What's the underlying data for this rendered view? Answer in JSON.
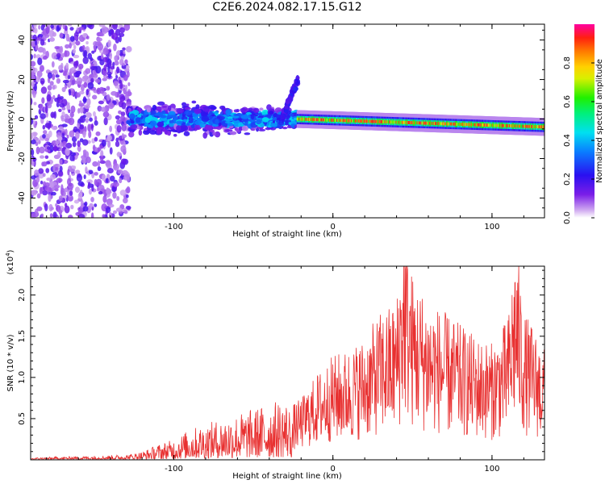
{
  "title": "C2E6.2024.082.17.15.G12",
  "colors": {
    "snr_line": "#e83030",
    "background": "#ffffff"
  },
  "chart_data": [
    {
      "type": "heatmap",
      "name": "spectrogram",
      "xlabel": "Height of straight line (km)",
      "ylabel": "Frequency (Hz)",
      "xlim": [
        -190,
        133
      ],
      "ylim": [
        -50,
        48
      ],
      "xticks": [
        -100,
        0,
        100
      ],
      "xtick_labels": [
        "-100",
        "0",
        "100"
      ],
      "yticks": [
        -40,
        -20,
        0,
        20,
        40
      ],
      "ytick_labels": [
        "-40",
        "-20",
        "0",
        "20",
        "40"
      ],
      "colorbar": {
        "label": "Normalized spectral amplitude",
        "range": [
          0,
          1
        ],
        "ticks": [
          0.0,
          0.2,
          0.4,
          0.6,
          0.8
        ],
        "tick_labels": [
          "0.0",
          "0.2",
          "0.4",
          "0.6",
          "0.8"
        ],
        "colormap": "rainbow (violet-blue-cyan-green-yellow-red-magenta)"
      },
      "regions": [
        {
          "x_range": [
            -190,
            -128
          ],
          "freq_range": [
            -50,
            48
          ],
          "amplitude": 0.1,
          "pattern": "scattered noise"
        },
        {
          "x_range": [
            -128,
            -22
          ],
          "freq_center": 0,
          "freq_halfwidth": 7,
          "amplitude": 0.3,
          "pattern": "broad signal band"
        },
        {
          "x_range": [
            -32,
            -22
          ],
          "freq_range": [
            0,
            20
          ],
          "amplitude": 0.15,
          "pattern": "upward branch"
        },
        {
          "x_range": [
            -22,
            133
          ],
          "freq_center_start": 0,
          "freq_center_end": -4,
          "amplitude": 0.85,
          "pattern": "narrow strong tone"
        }
      ]
    },
    {
      "type": "line",
      "name": "snr",
      "xlabel": "Height of straight line (km)",
      "ylabel": "SNR (10 * v/v)",
      "y_multiplier_label": "(x10",
      "y_multiplier_exp": "4",
      "xlim": [
        -190,
        133
      ],
      "ylim": [
        0,
        2.35
      ],
      "xticks": [
        -100,
        0,
        100
      ],
      "xtick_labels": [
        "-100",
        "0",
        "100"
      ],
      "yticks": [
        0.5,
        1.0,
        1.5,
        2.0
      ],
      "ytick_labels": [
        "0.5",
        "1.0",
        "1.5",
        "2.0"
      ],
      "series": [
        {
          "name": "SNR",
          "x": [
            -190,
            -170,
            -150,
            -130,
            -120,
            -110,
            -100,
            -90,
            -80,
            -70,
            -60,
            -50,
            -40,
            -30,
            -25,
            -20,
            -10,
            0,
            10,
            20,
            30,
            40,
            45,
            50,
            60,
            70,
            80,
            90,
            100,
            110,
            115,
            120,
            125,
            133
          ],
          "y": [
            0.02,
            0.03,
            0.04,
            0.05,
            0.08,
            0.15,
            0.2,
            0.3,
            0.35,
            0.4,
            0.45,
            0.5,
            0.55,
            0.6,
            0.45,
            0.5,
            0.7,
            0.85,
            0.9,
            1.0,
            1.2,
            1.3,
            2.0,
            1.5,
            1.3,
            1.2,
            1.1,
            1.0,
            0.95,
            1.15,
            1.8,
            1.2,
            1.1,
            0.9
          ]
        }
      ]
    }
  ]
}
